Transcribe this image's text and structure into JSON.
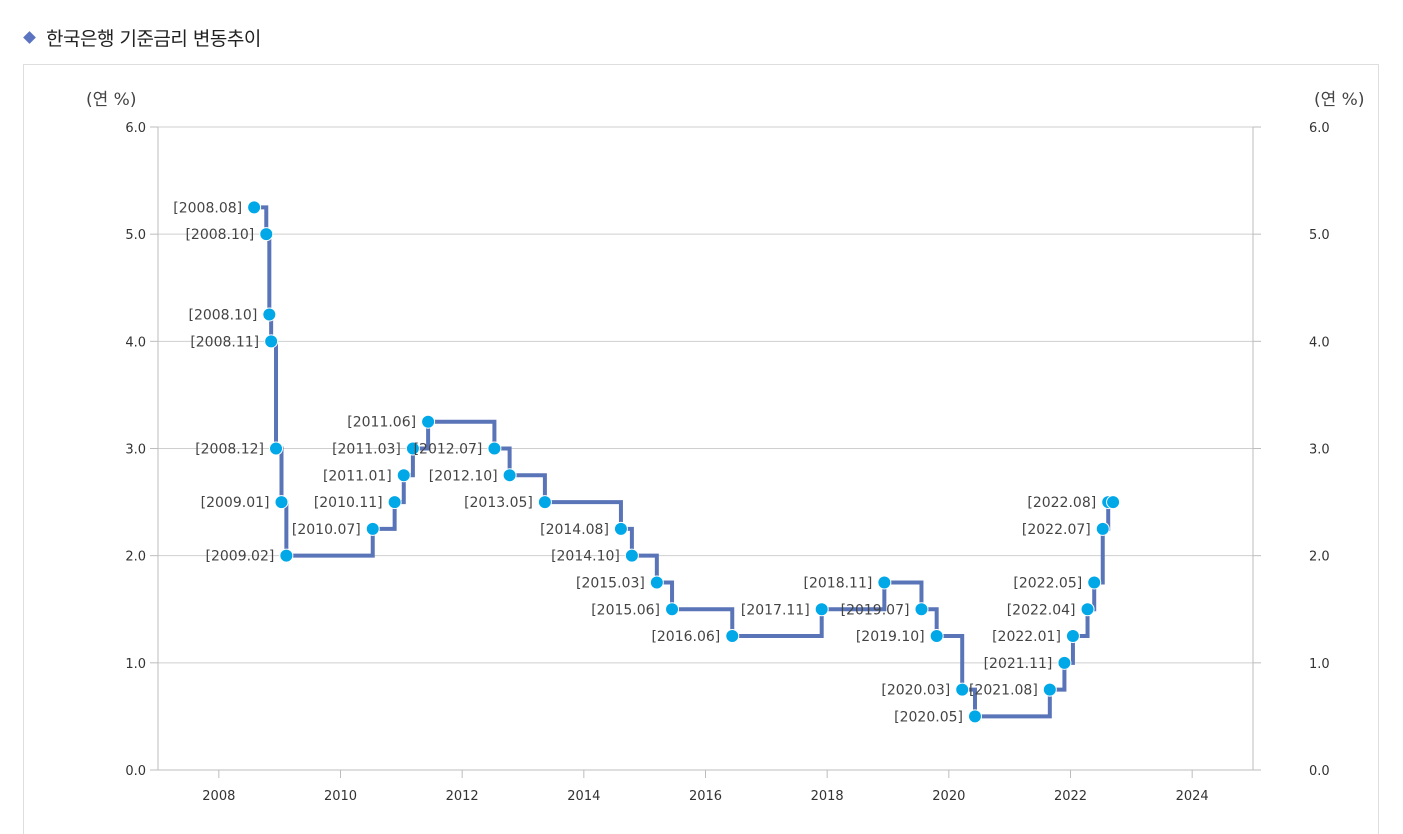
{
  "page": {
    "title": "한국은행 기준금리 변동추이"
  },
  "chart_data": {
    "type": "line",
    "step": true,
    "series": [
      {
        "line_color": "#5a74b8",
        "marker_color": "#00a8e8",
        "points": [
          {
            "x": 2008.58,
            "y": 5.25,
            "label": "[2008.08]"
          },
          {
            "x": 2008.78,
            "y": 5.0,
            "label": "[2008.10]"
          },
          {
            "x": 2008.83,
            "y": 4.25,
            "label": "[2008.10]"
          },
          {
            "x": 2008.86,
            "y": 4.0,
            "label": "[2008.11]"
          },
          {
            "x": 2008.94,
            "y": 3.0,
            "label": "[2008.12]"
          },
          {
            "x": 2009.03,
            "y": 2.5,
            "label": "[2009.01]"
          },
          {
            "x": 2009.11,
            "y": 2.0,
            "label": "[2009.02]"
          },
          {
            "x": 2010.53,
            "y": 2.25,
            "label": "[2010.07]"
          },
          {
            "x": 2010.89,
            "y": 2.5,
            "label": "[2010.11]"
          },
          {
            "x": 2011.04,
            "y": 2.75,
            "label": "[2011.01]"
          },
          {
            "x": 2011.19,
            "y": 3.0,
            "label": "[2011.03]"
          },
          {
            "x": 2011.44,
            "y": 3.25,
            "label": "[2011.06]"
          },
          {
            "x": 2012.53,
            "y": 3.0,
            "label": "[2012.07]"
          },
          {
            "x": 2012.78,
            "y": 2.75,
            "label": "[2012.10]"
          },
          {
            "x": 2013.36,
            "y": 2.5,
            "label": "[2013.05]"
          },
          {
            "x": 2014.61,
            "y": 2.25,
            "label": "[2014.08]"
          },
          {
            "x": 2014.79,
            "y": 2.0,
            "label": "[2014.10]"
          },
          {
            "x": 2015.2,
            "y": 1.75,
            "label": "[2015.03]"
          },
          {
            "x": 2015.45,
            "y": 1.5,
            "label": "[2015.06]"
          },
          {
            "x": 2016.44,
            "y": 1.25,
            "label": "[2016.06]"
          },
          {
            "x": 2017.91,
            "y": 1.5,
            "label": "[2017.11]"
          },
          {
            "x": 2018.94,
            "y": 1.75,
            "label": "[2018.11]"
          },
          {
            "x": 2019.55,
            "y": 1.5,
            "label": "[2019.07]"
          },
          {
            "x": 2019.8,
            "y": 1.25,
            "label": "[2019.10]"
          },
          {
            "x": 2020.22,
            "y": 0.75,
            "label": "[2020.03]"
          },
          {
            "x": 2020.43,
            "y": 0.5,
            "label": "[2020.05]"
          },
          {
            "x": 2021.66,
            "y": 0.75,
            "label": "[2021.08]"
          },
          {
            "x": 2021.9,
            "y": 1.0,
            "label": "[2021.11]"
          },
          {
            "x": 2022.04,
            "y": 1.25,
            "label": "[2022.01]"
          },
          {
            "x": 2022.28,
            "y": 1.5,
            "label": "[2022.04]"
          },
          {
            "x": 2022.39,
            "y": 1.75,
            "label": "[2022.05]"
          },
          {
            "x": 2022.53,
            "y": 2.25,
            "label": "[2022.07]"
          },
          {
            "x": 2022.62,
            "y": 2.5,
            "label": "[2022.08]"
          },
          {
            "x": 2022.7,
            "y": 2.5,
            "label": ""
          }
        ]
      }
    ],
    "xlim": [
      2007,
      2025
    ],
    "ylim": [
      0,
      6
    ],
    "x_ticks": [
      "2008",
      "2010",
      "2012",
      "2014",
      "2016",
      "2018",
      "2020",
      "2022",
      "2024"
    ],
    "x_tick_values": [
      2008,
      2010,
      2012,
      2014,
      2016,
      2018,
      2020,
      2022,
      2024
    ],
    "y_ticks": [
      "0.0",
      "1.0",
      "2.0",
      "3.0",
      "4.0",
      "5.0",
      "6.0"
    ],
    "y_tick_values": [
      0,
      1,
      2,
      3,
      4,
      5,
      6
    ],
    "y_unit_left": "(연 %)",
    "y_unit_right": "(연 %)",
    "grid": true,
    "grid_color": "#cfcfcf",
    "axis_color": "#bdbdbd"
  }
}
